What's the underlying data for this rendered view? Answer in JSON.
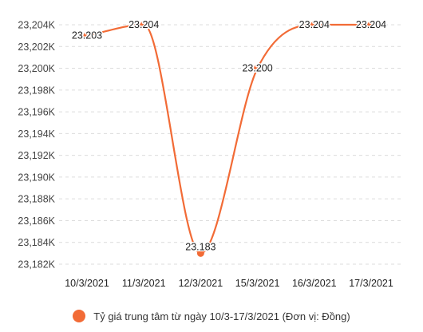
{
  "chart_data": {
    "type": "line",
    "categories": [
      "10/3/2021",
      "11/3/2021",
      "12/3/2021",
      "15/3/2021",
      "16/3/2021",
      "17/3/2021"
    ],
    "series": [
      {
        "name": "Tỷ giá trung tâm từ ngày 10/3-17/3/2021 (Đơn vị: Đồng)",
        "values": [
          23203,
          23204,
          23183,
          23200,
          23204,
          23204
        ],
        "data_labels": [
          "23.203",
          "23.204",
          "23.183",
          "23.200",
          "23.204",
          "23.204"
        ],
        "color": "#f26b36"
      }
    ],
    "ylim": [
      23182,
      23204
    ],
    "yticks": [
      23182,
      23184,
      23186,
      23188,
      23190,
      23192,
      23194,
      23196,
      23198,
      23200,
      23202,
      23204
    ],
    "ytick_labels": [
      "23,182K",
      "23,184K",
      "23,186K",
      "23,188K",
      "23,190K",
      "23,192K",
      "23,194K",
      "23,196K",
      "23,198K",
      "23,200K",
      "23,202K",
      "23,204K"
    ],
    "grid": true,
    "legend_position": "bottom",
    "title": "",
    "xlabel": "",
    "ylabel": ""
  }
}
